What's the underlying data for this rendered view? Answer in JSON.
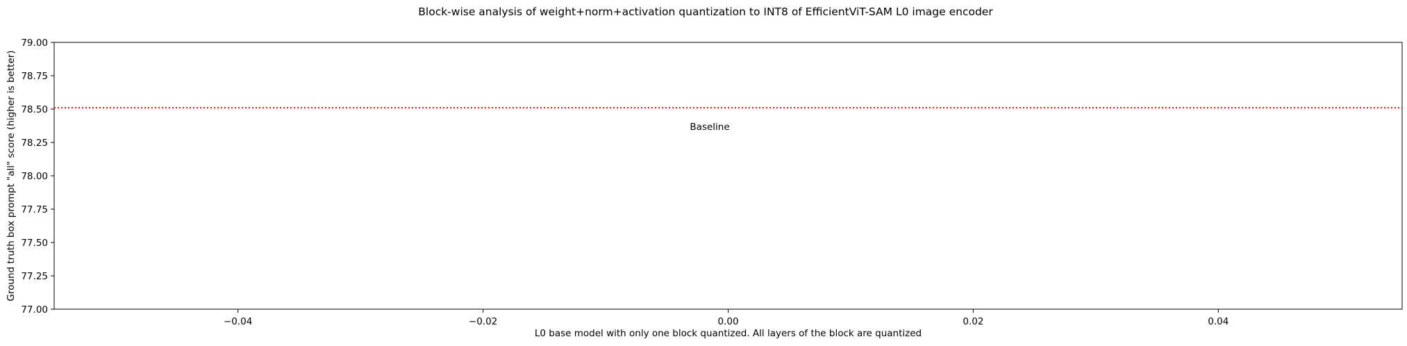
{
  "chart_data": {
    "type": "line",
    "title": "Block-wise analysis of weight+norm+activation quantization to INT8 of EfficientViT-SAM L0 image encoder",
    "xlabel": "L0 base model with only one block quantized. All layers of the block are quantized",
    "ylabel": "Ground truth box prompt \"all\" score (higher is better)",
    "xlim": [
      -0.055,
      0.055
    ],
    "ylim": [
      77.0,
      79.0
    ],
    "x_ticks": [
      -0.04,
      -0.02,
      0.0,
      0.02,
      0.04
    ],
    "x_tick_labels": [
      "−0.04",
      "−0.02",
      "0.00",
      "0.02",
      "0.04"
    ],
    "y_ticks": [
      77.0,
      77.25,
      77.5,
      77.75,
      78.0,
      78.25,
      78.5,
      78.75,
      79.0
    ],
    "y_tick_labels": [
      "77.00",
      "77.25",
      "77.50",
      "77.75",
      "78.00",
      "78.25",
      "78.50",
      "78.75",
      "79.00"
    ],
    "series": [],
    "baseline": {
      "value": 78.51,
      "color": "#ff0000",
      "style": "dotted"
    },
    "annotations": [
      {
        "text": "Baseline",
        "x": -0.0015,
        "y": 78.37
      }
    ],
    "grid": false,
    "legend": "none"
  }
}
